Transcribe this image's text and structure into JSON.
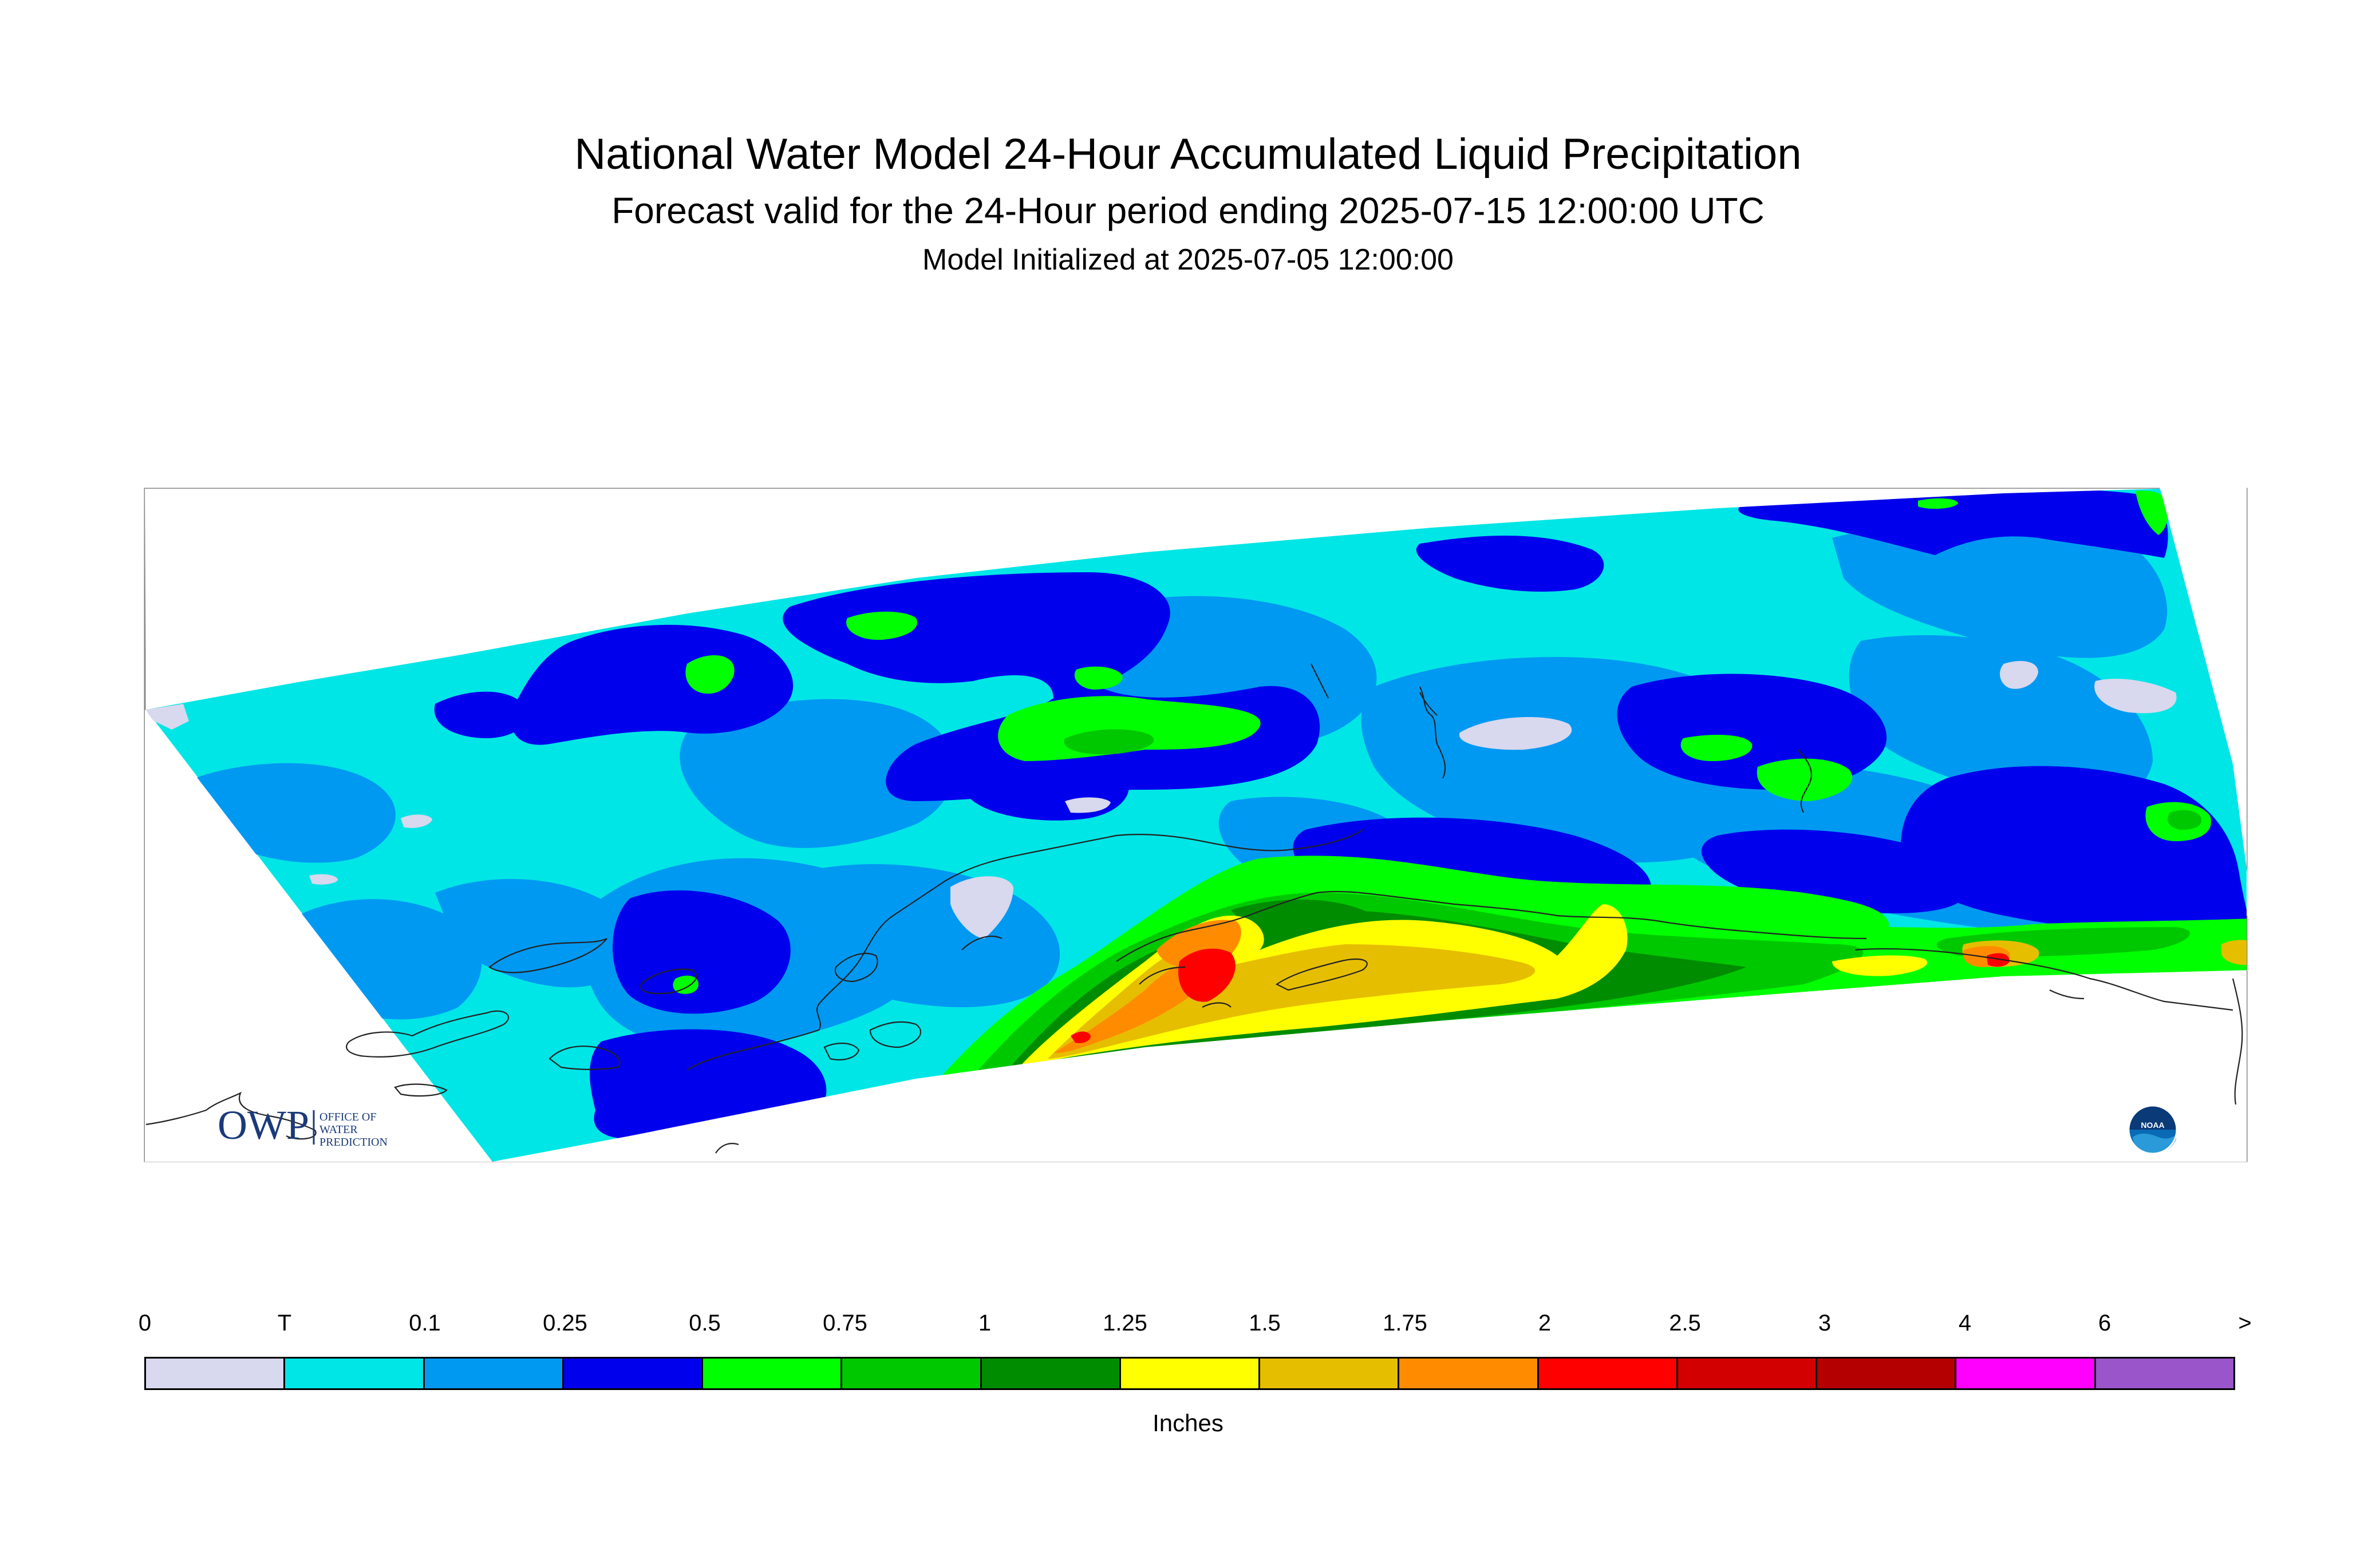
{
  "header": {
    "title": "National Water Model 24-Hour Accumulated Liquid Precipitation",
    "subtitle": "Forecast valid for the 24-Hour period ending 2025-07-15 12:00:00 UTC",
    "init": "Model Initialized at 2025-07-05 12:00:00"
  },
  "logos": {
    "owp_letters": "OWP",
    "owp_text": [
      "OFFICE OF",
      "WATER",
      "PREDICTION"
    ],
    "noaa_text": "NOAA"
  },
  "legend": {
    "labels": [
      "0",
      "T",
      "0.1",
      "0.25",
      "0.5",
      "0.75",
      "1",
      "1.25",
      "1.5",
      "1.75",
      "2",
      "2.5",
      "3",
      "4",
      "6",
      ">"
    ],
    "colors": [
      "#d8d8ee",
      "#00e6e6",
      "#0099f2",
      "#0000ec",
      "#00ff00",
      "#00c800",
      "#008c00",
      "#ffff00",
      "#e6be00",
      "#ff8c00",
      "#ff0000",
      "#d20000",
      "#b40000",
      "#ff00ff",
      "#9955c9"
    ],
    "units": "Inches"
  }
}
